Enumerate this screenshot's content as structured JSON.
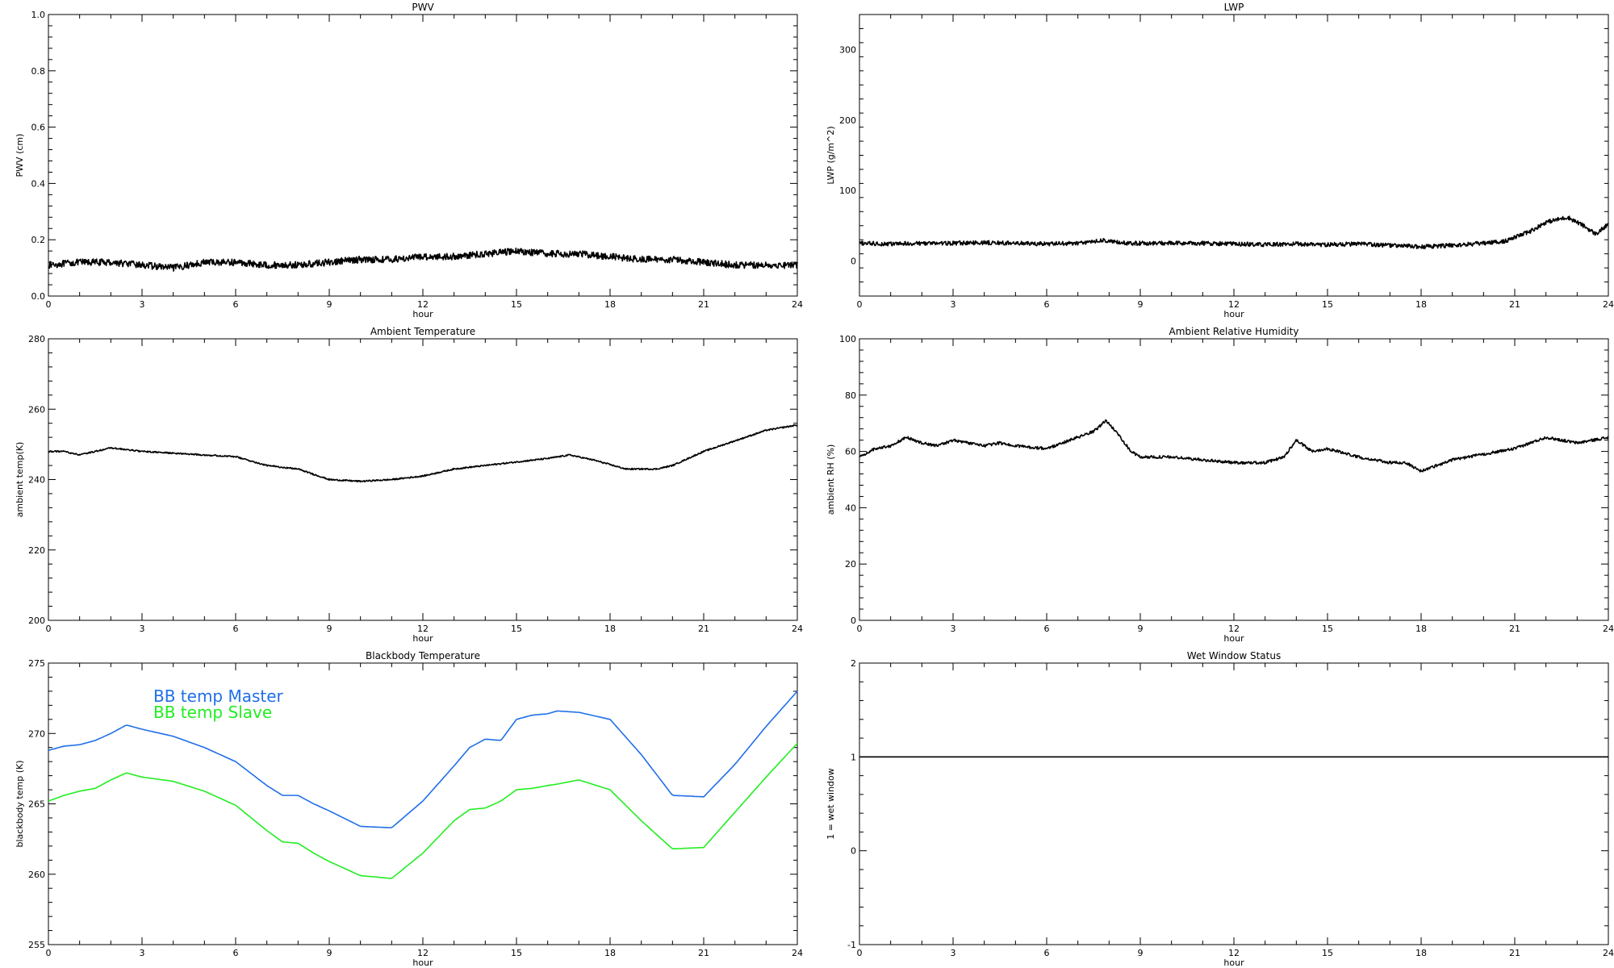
{
  "colors": {
    "axes": "#000000",
    "bb_master": "#1f6fe8",
    "bb_slave": "#22ee22"
  },
  "chart_data": [
    {
      "id": "pwv",
      "type": "line",
      "title": "PWV",
      "xlabel": "hour",
      "ylabel": "PWV (cm)",
      "xlim": [
        0,
        24
      ],
      "ylim": [
        0,
        1
      ],
      "xticks": [
        0,
        3,
        6,
        9,
        12,
        15,
        18,
        21,
        24
      ],
      "yticks": [
        0.0,
        0.2,
        0.4,
        0.6,
        0.8,
        1.0
      ],
      "ytick_labels": [
        "0.0",
        "0.2",
        "0.4",
        "0.6",
        "0.8",
        "1.0"
      ],
      "xtick_labels": [
        "0",
        "3",
        "6",
        "9",
        "12",
        "15",
        "18",
        "21",
        "24"
      ],
      "noise": 0.012,
      "series": [
        {
          "color": "#000000",
          "x": [
            0,
            1,
            2,
            3,
            4,
            5,
            6,
            7,
            8,
            9,
            10,
            11,
            12,
            13,
            14,
            15,
            16,
            17,
            18,
            19,
            20,
            21,
            22,
            23,
            24
          ],
          "y": [
            0.11,
            0.12,
            0.12,
            0.11,
            0.1,
            0.12,
            0.12,
            0.11,
            0.11,
            0.12,
            0.13,
            0.13,
            0.14,
            0.14,
            0.15,
            0.16,
            0.15,
            0.15,
            0.14,
            0.13,
            0.13,
            0.12,
            0.11,
            0.11,
            0.11
          ]
        }
      ]
    },
    {
      "id": "lwp",
      "type": "line",
      "title": "LWP",
      "xlabel": "hour",
      "ylabel": "LWP (g/m^2)",
      "xlim": [
        0,
        24
      ],
      "ylim": [
        -50,
        350
      ],
      "xticks": [
        0,
        3,
        6,
        9,
        12,
        15,
        18,
        21,
        24
      ],
      "yticks": [
        0,
        100,
        200,
        300
      ],
      "ytick_labels": [
        "0",
        "100",
        "200",
        "300"
      ],
      "xtick_labels": [
        "0",
        "3",
        "6",
        "9",
        "12",
        "15",
        "18",
        "21",
        "24"
      ],
      "noise": 3,
      "series": [
        {
          "color": "#000000",
          "x": [
            0,
            1,
            2,
            3,
            4,
            5,
            6,
            7,
            7.8,
            8.5,
            10,
            11,
            12,
            13,
            14,
            15,
            16,
            17,
            18,
            19,
            20,
            20.7,
            21.5,
            22,
            22.7,
            23.2,
            23.6,
            24
          ],
          "y": [
            25,
            24,
            25,
            25,
            26,
            25,
            24,
            25,
            29,
            25,
            25,
            25,
            24,
            23,
            24,
            23,
            24,
            22,
            20,
            22,
            25,
            28,
            42,
            55,
            62,
            50,
            38,
            52
          ]
        }
      ]
    },
    {
      "id": "ambient_temp",
      "type": "line",
      "title": "Ambient Temperature",
      "xlabel": "hour",
      "ylabel": "ambient temp(K)",
      "xlim": [
        0,
        24
      ],
      "ylim": [
        200,
        280
      ],
      "xticks": [
        0,
        3,
        6,
        9,
        12,
        15,
        18,
        21,
        24
      ],
      "yticks": [
        200,
        220,
        240,
        260,
        280
      ],
      "ytick_labels": [
        "200",
        "220",
        "240",
        "260",
        "280"
      ],
      "xtick_labels": [
        "0",
        "3",
        "6",
        "9",
        "12",
        "15",
        "18",
        "21",
        "24"
      ],
      "noise": 0.2,
      "series": [
        {
          "color": "#000000",
          "x": [
            0,
            0.5,
            1,
            1.5,
            2,
            2.5,
            3,
            4,
            5,
            6,
            7,
            8,
            9,
            10,
            11,
            12,
            13,
            14,
            15,
            16,
            16.7,
            17.5,
            18.5,
            19.5,
            20,
            21,
            22,
            23,
            24
          ],
          "y": [
            248,
            248,
            247,
            248,
            249,
            248.5,
            248,
            247.5,
            247,
            246.5,
            244,
            243,
            240,
            239.5,
            240,
            241,
            243,
            244,
            245,
            246,
            247,
            245.5,
            243,
            243,
            244,
            248,
            251,
            254,
            255.5
          ]
        }
      ]
    },
    {
      "id": "ambient_rh",
      "type": "line",
      "title": "Ambient Relative Humidity",
      "xlabel": "hour",
      "ylabel": "ambient RH (%)",
      "xlim": [
        0,
        24
      ],
      "ylim": [
        0,
        100
      ],
      "xticks": [
        0,
        3,
        6,
        9,
        12,
        15,
        18,
        21,
        24
      ],
      "yticks": [
        0,
        20,
        40,
        60,
        80,
        100
      ],
      "ytick_labels": [
        "0",
        "20",
        "40",
        "60",
        "80",
        "100"
      ],
      "xtick_labels": [
        "0",
        "3",
        "6",
        "9",
        "12",
        "15",
        "18",
        "21",
        "24"
      ],
      "noise": 0.5,
      "series": [
        {
          "color": "#000000",
          "x": [
            0,
            0.5,
            1,
            1.5,
            2,
            2.5,
            3,
            3.5,
            4,
            4.5,
            5,
            6,
            6.5,
            7,
            7.5,
            7.9,
            8.3,
            8.7,
            9,
            10,
            11,
            12,
            13,
            13.6,
            14,
            14.5,
            15,
            16,
            17,
            17.5,
            18,
            18.5,
            19,
            20,
            21,
            22,
            23,
            24
          ],
          "y": [
            58,
            61,
            62,
            65,
            63,
            62,
            64,
            63,
            62,
            63,
            62,
            61,
            63,
            65,
            67,
            71,
            66,
            60,
            58,
            58,
            57,
            56,
            56,
            58,
            64,
            60,
            61,
            58,
            56,
            56,
            53,
            55,
            57,
            59,
            61,
            65,
            63,
            65
          ]
        }
      ]
    },
    {
      "id": "bb_temp",
      "type": "line",
      "title": "Blackbody Temperature",
      "xlabel": "hour",
      "ylabel": "blackbody temp (K)",
      "xlim": [
        0,
        24
      ],
      "ylim": [
        255,
        275
      ],
      "xticks": [
        0,
        3,
        6,
        9,
        12,
        15,
        18,
        21,
        24
      ],
      "yticks": [
        255,
        260,
        265,
        270,
        275
      ],
      "ytick_labels": [
        "255",
        "260",
        "265",
        "270",
        "275"
      ],
      "xtick_labels": [
        "0",
        "3",
        "6",
        "9",
        "12",
        "15",
        "18",
        "21",
        "24"
      ],
      "noise": 0,
      "legend": "top-left",
      "series": [
        {
          "name": "BB temp Master",
          "color": "#1f6fe8",
          "x": [
            0,
            0.5,
            1,
            1.5,
            2,
            2.5,
            3,
            4,
            5,
            6,
            7,
            7.5,
            8,
            8.5,
            9,
            10,
            11,
            12,
            13,
            13.5,
            14,
            14.5,
            15,
            15.5,
            16,
            16.3,
            17,
            18,
            19,
            20,
            21,
            22,
            23,
            24
          ],
          "y": [
            268.8,
            269.1,
            269.2,
            269.5,
            270.0,
            270.6,
            270.3,
            269.8,
            269.0,
            268.0,
            266.3,
            265.6,
            265.6,
            265.0,
            264.5,
            263.4,
            263.3,
            265.2,
            267.7,
            269.0,
            269.6,
            269.5,
            271.0,
            271.3,
            271.4,
            271.6,
            271.5,
            271.0,
            268.5,
            265.6,
            265.5,
            267.8,
            270.5,
            273.0
          ]
        },
        {
          "name": "BB temp Slave",
          "color": "#22ee22",
          "x": [
            0,
            0.5,
            1,
            1.5,
            2,
            2.5,
            3,
            4,
            5,
            6,
            7,
            7.5,
            8,
            8.5,
            9,
            10,
            11,
            12,
            13,
            13.5,
            14,
            14.5,
            15,
            15.5,
            16,
            16.3,
            17,
            18,
            19,
            20,
            21,
            22,
            23,
            24
          ],
          "y": [
            265.2,
            265.6,
            265.9,
            266.1,
            266.7,
            267.2,
            266.9,
            266.6,
            265.9,
            264.9,
            263.1,
            262.3,
            262.2,
            261.5,
            260.9,
            259.9,
            259.7,
            261.5,
            263.8,
            264.6,
            264.7,
            265.2,
            266.0,
            266.1,
            266.3,
            266.4,
            266.7,
            266.0,
            263.8,
            261.8,
            261.9,
            264.4,
            266.9,
            269.3
          ]
        }
      ]
    },
    {
      "id": "wet_window",
      "type": "line",
      "title": "Wet Window Status",
      "xlabel": "hour",
      "ylabel": "1 = wet window",
      "xlim": [
        0,
        24
      ],
      "ylim": [
        -1,
        2
      ],
      "xticks": [
        0,
        3,
        6,
        9,
        12,
        15,
        18,
        21,
        24
      ],
      "yticks": [
        -1,
        0,
        1,
        2
      ],
      "ytick_labels": [
        "-1",
        "0",
        "1",
        "2"
      ],
      "xtick_labels": [
        "0",
        "3",
        "6",
        "9",
        "12",
        "15",
        "18",
        "21",
        "24"
      ],
      "noise": 0,
      "series": [
        {
          "color": "#000000",
          "x": [
            0,
            24
          ],
          "y": [
            1,
            1
          ]
        }
      ]
    }
  ]
}
